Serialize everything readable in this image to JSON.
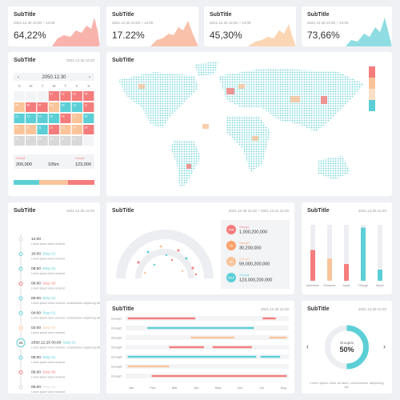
{
  "kpis": [
    {
      "title": "SubTitle",
      "date": "2021.12.30 12:00 ~ 14:00",
      "value": "64,22%"
    },
    {
      "title": "SubTitle",
      "date": "2021.12.30 12:00 ~ 14:00",
      "value": "17.22%"
    },
    {
      "title": "SubTitle",
      "date": "2021.12.30 12:00 ~ 14:00",
      "value": "45,30%"
    },
    {
      "title": "SubTitle",
      "date": "2021.12.30 12:00 ~ 14:00",
      "value": "73,66%"
    }
  ],
  "calendar": {
    "title": "SubTitle",
    "date": "2021.12.30 12:20",
    "month": "2050.12.30",
    "weekdays": [
      "S",
      "M",
      "T",
      "W",
      "T",
      "F",
      "S"
    ],
    "days": [
      null,
      null,
      null,
      "01",
      "02",
      "03",
      "04",
      "05",
      "06",
      "07",
      "08",
      "09",
      "10",
      "11",
      "12",
      "13",
      "14",
      "15",
      "16",
      "17",
      "18",
      "19",
      "20",
      "21",
      "22",
      "23",
      "24",
      "25",
      "26",
      "27",
      "28",
      "29",
      "30",
      "31",
      null
    ],
    "status": [
      "empty",
      "empty",
      "empty",
      "red",
      "red",
      "red",
      "red",
      "peach",
      "red",
      "red",
      "peach",
      "teal",
      "teal",
      "red",
      "teal",
      "teal",
      "teal",
      "teal",
      "red",
      "peach",
      "teal",
      "peach",
      "peach",
      "teal",
      "red",
      "peach",
      "peach",
      "red",
      "gray",
      "gray",
      "gray",
      "gray",
      "gray",
      "gray",
      "empty"
    ],
    "stats": [
      {
        "label": "Group1",
        "value": "200,000"
      },
      {
        "label": "",
        "value": "105m"
      },
      {
        "label": "Group3",
        "value": "123,000"
      }
    ]
  },
  "map": {
    "title": "SubTitle",
    "date": "2021.12.30 12:20"
  },
  "timeline": {
    "title": "SubTitle",
    "date": "2021.12.30 12:20",
    "items": [
      {
        "time": "12:00",
        "step": "",
        "text": "Lorem ipsum dolor sit amet.",
        "color": "gray"
      },
      {
        "time": "10:00",
        "step": "Step 01",
        "text": "Lorem ipsum dolor sit amet.",
        "color": "teal"
      },
      {
        "time": "08:00",
        "step": "Step 01",
        "text": "Lorem ipsum dolor sit amet.",
        "color": "teal"
      },
      {
        "time": "06:00",
        "step": "Step 05",
        "text": "Lorem ipsum dolor sit amet.",
        "color": "red"
      },
      {
        "time": "06:00",
        "step": "Step 01",
        "text": "Lorem ipsum dolor sit amet, consectetuer adipiscing elit.",
        "color": "teal"
      },
      {
        "time": "04:00",
        "step": "Step 01",
        "text": "Lorem ipsum dolor sit amet, consectetuer adipiscing elit.",
        "color": "teal"
      },
      {
        "time": "02:00",
        "step": "Step 02",
        "text": "Lorem ipsum dolor sit amet.",
        "color": "peach"
      },
      {
        "time": "2050.12.25 00:00",
        "step": "Step 01",
        "text": "Lorem ipsum dolor sit amet, consectetuer adipiscing elit.",
        "color": "teal",
        "day": "25"
      },
      {
        "time": "08:00",
        "step": "Step 01",
        "text": "Lorem ipsum dolor sit amet.",
        "color": "teal"
      },
      {
        "time": "06:00",
        "step": "Step 05",
        "text": "Lorem ipsum dolor sit amet.",
        "color": "red"
      },
      {
        "time": "06:00",
        "step": "Step 01",
        "text": "Lorem ipsum dolor sit amet.",
        "color": "gray"
      }
    ]
  },
  "gauge": {
    "title": "SubTitle",
    "date": "2021.12.30 12:20 ~ 2021.12.31 12:20",
    "groups": [
      {
        "badge": "MIN",
        "name": "Group1",
        "value": "1,000,200,000",
        "color": "#f47c7c"
      },
      {
        "badge": "25",
        "name": "Group2",
        "value": "30,200,000",
        "color": "#f9a26c"
      },
      {
        "badge": "50",
        "name": "Group3",
        "value": "59,000,200,000",
        "color": "#f9c49a"
      },
      {
        "badge": "MAX",
        "name": "Group4",
        "value": "123,000,200,000",
        "color": "#5ccfd6"
      }
    ]
  },
  "chart_data": [
    {
      "type": "bar",
      "title": "SubTitle",
      "date": "2021.12.30 12:20",
      "categories": [
        "Adventure",
        "Romance",
        "Apple",
        "Orange",
        "Melon"
      ],
      "values": [
        55,
        40,
        30,
        95,
        20
      ],
      "colors": [
        "#f47c7c",
        "#f9c49a",
        "#f47c7c",
        "#5ccfd6",
        "#5ccfd6"
      ],
      "ylim": [
        0,
        100
      ]
    },
    {
      "type": "gantt",
      "title": "SubTitle",
      "date": "2021.12.30 12:20",
      "categories": [
        "Jan",
        "Feb",
        "Mar",
        "Apr",
        "May",
        "Jun",
        "Jul",
        "Aug"
      ],
      "xlim": [
        0,
        7.5
      ],
      "rows": [
        {
          "name": "Group1",
          "color": "#f47c7c",
          "segments": [
            {
              "start": 0.1,
              "end": 3.2
            },
            {
              "start": 6.3,
              "end": 6.9
            }
          ]
        },
        {
          "name": "Group2",
          "color": "#5ccfd6",
          "segments": [
            {
              "start": 1.0,
              "end": 5.9
            }
          ]
        },
        {
          "name": "Group3",
          "color": "#f9c49a",
          "segments": [
            {
              "start": 3.0,
              "end": 5.0
            },
            {
              "start": 6.6,
              "end": 7.4
            }
          ]
        },
        {
          "name": "Group4",
          "color": "#f47c7c",
          "segments": [
            {
              "start": 2.0,
              "end": 3.6
            },
            {
              "start": 4.0,
              "end": 5.8
            }
          ]
        },
        {
          "name": "Group5",
          "color": "#5ccfd6",
          "segments": [
            {
              "start": 0.1,
              "end": 6.0
            },
            {
              "start": 6.2,
              "end": 7.1
            }
          ]
        },
        {
          "name": "Group6",
          "color": "#f9c49a",
          "segments": [
            {
              "start": 0.1,
              "end": 2.0
            }
          ]
        },
        {
          "name": "Group7",
          "color": "#f47c7c",
          "segments": [
            {
              "start": 1.2,
              "end": 7.4
            }
          ]
        }
      ]
    },
    {
      "type": "donut",
      "title": "SubTitle",
      "date": "2021.12.30 12:20",
      "label": "Group01",
      "value": 50,
      "value_label": "50%",
      "color": "#5ccfd6",
      "text": "Lorem ipsum dolor sit amet, consectetuer adipiscing elit."
    }
  ]
}
